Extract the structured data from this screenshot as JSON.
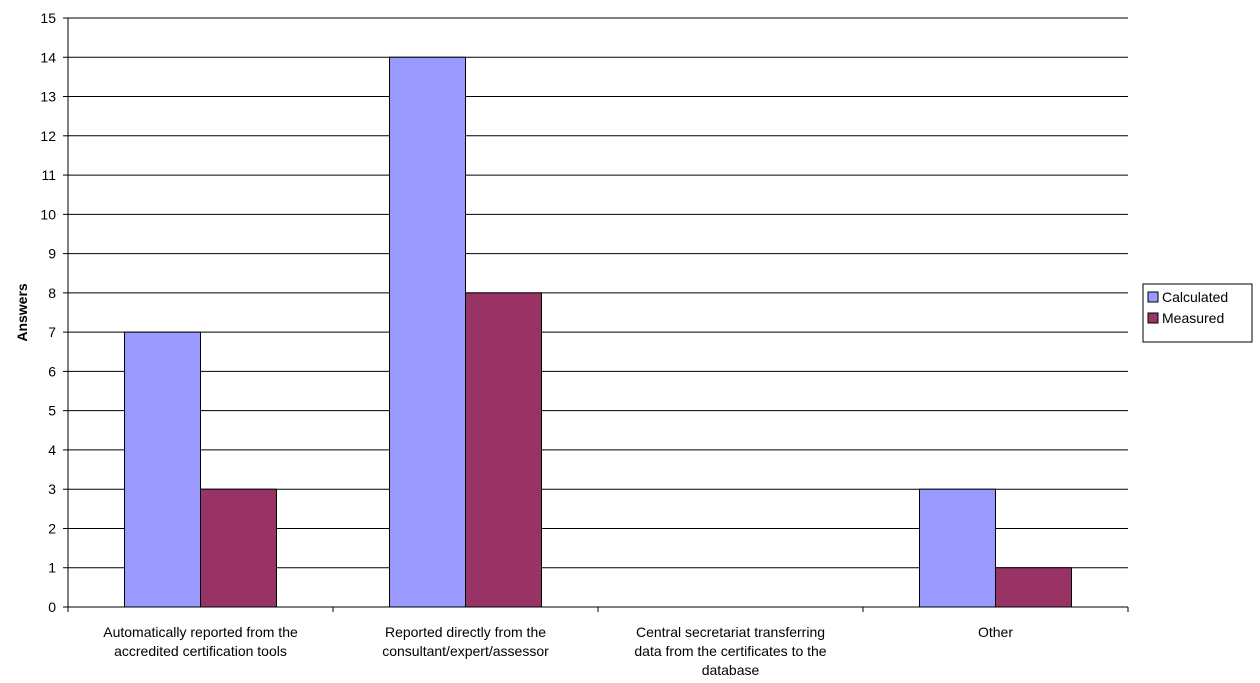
{
  "chart_data": {
    "type": "bar",
    "title": "",
    "xlabel": "",
    "ylabel": "Answers",
    "ylim": [
      0,
      15
    ],
    "yticks": [
      0,
      1,
      2,
      3,
      4,
      5,
      6,
      7,
      8,
      9,
      10,
      11,
      12,
      13,
      14,
      15
    ],
    "grid": true,
    "legend_position": "right",
    "categories": [
      [
        "Automatically reported from the",
        "accredited certification tools"
      ],
      [
        "Reported directly from the",
        "consultant/expert/assessor"
      ],
      [
        "Central secretariat transferring",
        "data from the certificates to the",
        "database"
      ],
      [
        "Other"
      ]
    ],
    "series": [
      {
        "name": "Calculated",
        "color": "#9999ff",
        "values": [
          7,
          14,
          0,
          3
        ]
      },
      {
        "name": "Measured",
        "color": "#993366",
        "values": [
          3,
          8,
          0,
          1
        ]
      }
    ]
  }
}
